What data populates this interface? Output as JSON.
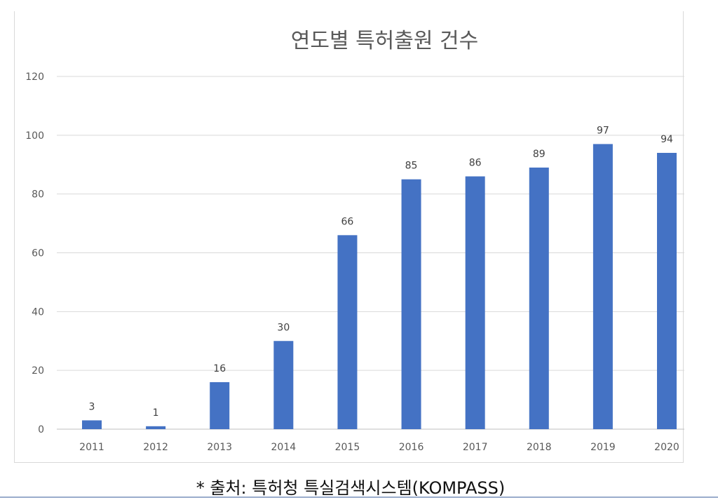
{
  "colors": {
    "bar": "#4472C4",
    "grid": "#d9d9d9",
    "axis": "#bfbfbf"
  },
  "chart_data": {
    "type": "bar",
    "title": "연도별 특허출원 건수",
    "xlabel": "",
    "ylabel": "",
    "categories": [
      "2011",
      "2012",
      "2013",
      "2014",
      "2015",
      "2016",
      "2017",
      "2018",
      "2019",
      "2020"
    ],
    "values": [
      3,
      1,
      16,
      30,
      66,
      85,
      86,
      89,
      97,
      94
    ],
    "ylim": [
      0,
      120
    ],
    "yticks": [
      0,
      20,
      40,
      60,
      80,
      100,
      120
    ],
    "grid": true,
    "data_labels": true
  },
  "source_note": "* 출처: 특허청 특실검색시스템(KOMPASS)"
}
